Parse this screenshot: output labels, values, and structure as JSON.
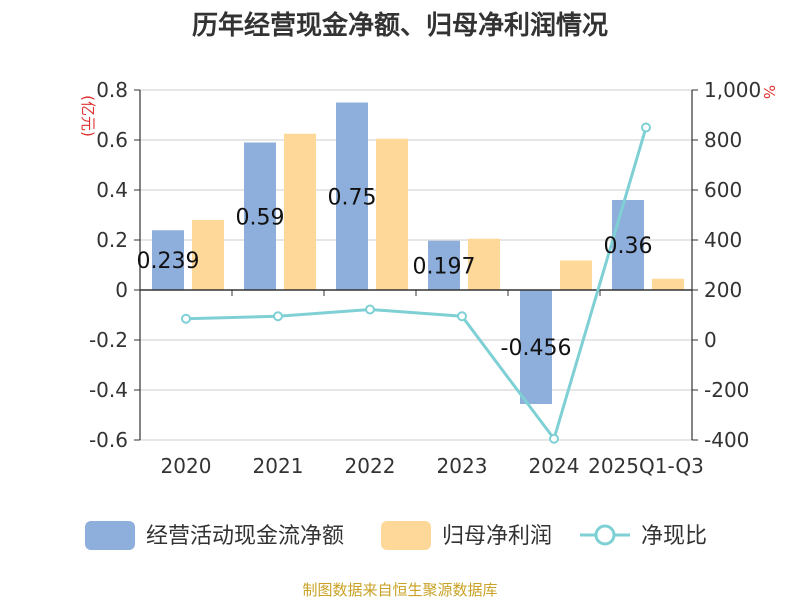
{
  "chart_data": {
    "type": "bar",
    "title": "历年经营现金净额、归母净利润情况",
    "categories": [
      "2020",
      "2021",
      "2022",
      "2023",
      "2024",
      "2025Q1-Q3"
    ],
    "series": [
      {
        "name": "经营活动现金流净额",
        "kind": "bar",
        "axis": "left",
        "color": "#8eaedb",
        "values": [
          0.239,
          0.59,
          0.75,
          0.197,
          -0.456,
          0.36
        ],
        "labels": [
          "0.239",
          "0.59",
          "0.75",
          "0.197",
          "-0.456",
          "0.36"
        ]
      },
      {
        "name": "归母净利润",
        "kind": "bar",
        "axis": "left",
        "color": "#fed898",
        "values": [
          0.28,
          0.625,
          0.605,
          0.205,
          0.118,
          0.045
        ]
      },
      {
        "name": "净现比",
        "kind": "line",
        "axis": "right",
        "color": "#7fd0d4",
        "values": [
          85,
          95,
          122,
          95,
          -395,
          850
        ]
      }
    ],
    "left_axis": {
      "unit": "(亿元)",
      "ylim": [
        -0.6,
        0.8
      ],
      "ticks": [
        "0.8",
        "0.6",
        "0.4",
        "0.2",
        "0",
        "-0.2",
        "-0.4",
        "-0.6"
      ]
    },
    "right_axis": {
      "unit": "%",
      "ylim": [
        -400,
        1000
      ],
      "ticks": [
        "1,000",
        "800",
        "600",
        "400",
        "200",
        "0",
        "-200",
        "-400"
      ]
    },
    "source": "制图数据来自恒生聚源数据库"
  }
}
